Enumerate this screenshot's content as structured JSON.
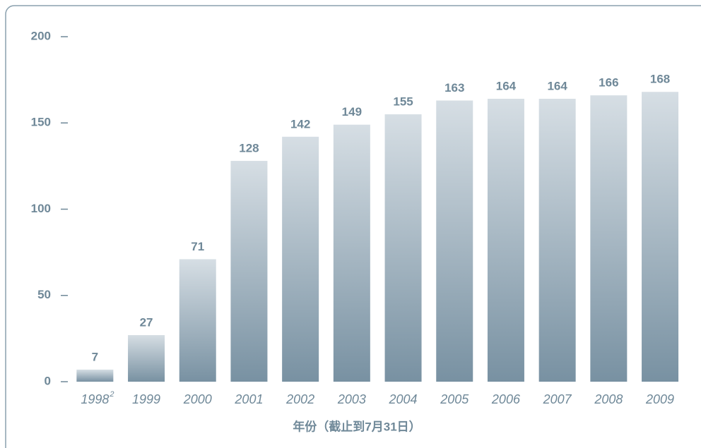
{
  "chart_data": {
    "type": "bar",
    "x_label": "年份（截止到7月31日）",
    "categories": [
      "1998",
      "1999",
      "2000",
      "2001",
      "2002",
      "2003",
      "2004",
      "2005",
      "2006",
      "2007",
      "2008",
      "2009"
    ],
    "category_footnotes": [
      "2",
      null,
      null,
      null,
      null,
      null,
      null,
      null,
      null,
      null,
      null,
      null
    ],
    "values": [
      7,
      27,
      71,
      128,
      142,
      149,
      155,
      163,
      164,
      164,
      166,
      168
    ],
    "color_top": "#d6dee4",
    "color_bottom": "#7891a2",
    "ylim": [
      0,
      200
    ],
    "yticks": [
      0,
      50,
      100,
      150,
      200
    ]
  }
}
